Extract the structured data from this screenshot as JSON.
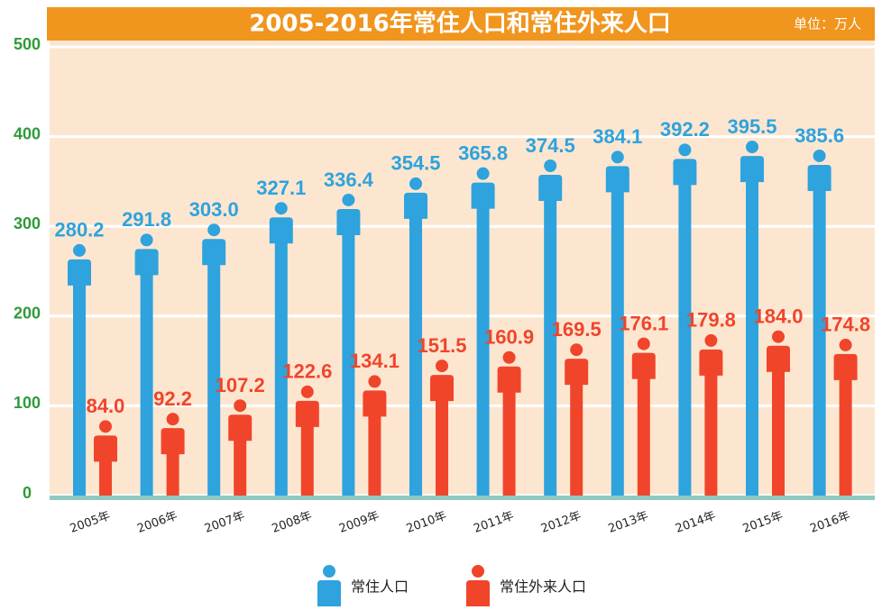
{
  "chart_data": {
    "type": "pictogram-bar",
    "title": "2005-2016年常住人口和常住外来人口",
    "unit": "单位：万人",
    "categories": [
      "2005年",
      "2006年",
      "2007年",
      "2008年",
      "2009年",
      "2010年",
      "2011年",
      "2012年",
      "2013年",
      "2014年",
      "2015年",
      "2016年"
    ],
    "series": [
      {
        "name": "常住人口",
        "color": "#2ea3dd",
        "values": [
          280.2,
          291.8,
          303.0,
          327.1,
          336.4,
          354.5,
          365.8,
          374.5,
          384.1,
          392.2,
          395.5,
          385.6
        ],
        "value_labels": [
          "280.2",
          "291.8",
          "303.0",
          "327.1",
          "336.4",
          "354.5",
          "365.8",
          "374.5",
          "384.1",
          "392.2",
          "395.5",
          "385.6"
        ]
      },
      {
        "name": "常住外来人口",
        "color": "#f0452b",
        "values": [
          84.0,
          92.2,
          107.2,
          122.6,
          134.1,
          151.5,
          160.9,
          169.5,
          176.1,
          179.8,
          184.0,
          174.8
        ],
        "value_labels": [
          "84.0",
          "92.2",
          "107.2",
          "122.6",
          "134.1",
          "151.5",
          "160.9",
          "169.5",
          "176.1",
          "179.8",
          "184.0",
          "174.8"
        ]
      }
    ],
    "ylim": [
      0,
      500
    ],
    "yticks": [
      0,
      100,
      200,
      300,
      400,
      500
    ],
    "grid": true
  }
}
